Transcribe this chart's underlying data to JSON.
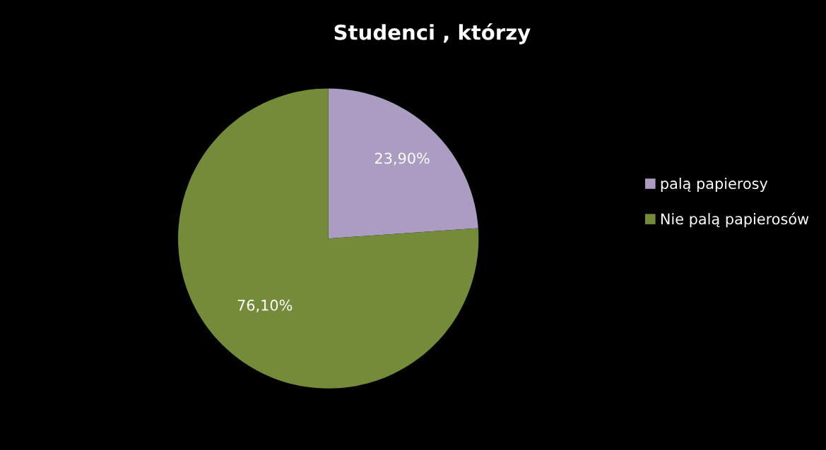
{
  "chart_data": {
    "type": "pie",
    "title": "Studenci , którzy",
    "categories": [
      "palą papierosy",
      "Nie palą papierosów"
    ],
    "values": [
      23.9,
      76.1
    ],
    "colors": [
      "#ab9cc2",
      "#748c3a"
    ],
    "value_labels": [
      "23,90%",
      "76,10%"
    ],
    "legend": "right"
  }
}
